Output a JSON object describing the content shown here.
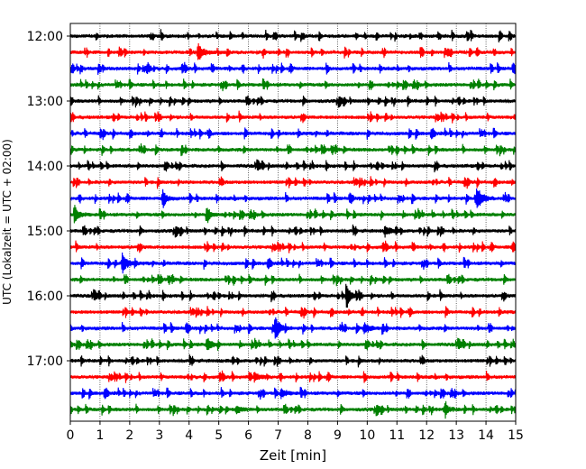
{
  "chart_data": {
    "type": "line",
    "title": "",
    "xlabel": "Zeit  [min]",
    "ylabel": "UTC (Lokalzeit = UTC + 02:00)",
    "xlim": [
      0,
      15
    ],
    "x_ticks": [
      "0",
      "1",
      "2",
      "3",
      "4",
      "5",
      "6",
      "7",
      "8",
      "9",
      "10",
      "11",
      "12",
      "13",
      "14",
      "15"
    ],
    "y_ticks": [
      "12:00",
      "13:00",
      "14:00",
      "15:00",
      "16:00",
      "17:00"
    ],
    "grid_x": true,
    "trace_colors": [
      "#000000",
      "#ff0000",
      "#0000ff",
      "#008000"
    ],
    "trace_start_times": [
      "12:00",
      "12:15",
      "12:30",
      "12:45",
      "13:00",
      "13:15",
      "13:30",
      "13:45",
      "14:00",
      "14:15",
      "14:30",
      "14:45",
      "15:00",
      "15:15",
      "15:30",
      "15:45",
      "16:00",
      "16:15",
      "16:30",
      "16:45",
      "17:00",
      "17:15",
      "17:30",
      "17:45"
    ],
    "events": [
      {
        "trace": 1,
        "minute": 4.3,
        "amplitude": 2.2
      },
      {
        "trace": 10,
        "minute": 13.7,
        "amplitude": 3.0
      },
      {
        "trace": 10,
        "minute": 3.1,
        "amplitude": 1.2
      },
      {
        "trace": 11,
        "minute": 0.15,
        "amplitude": 1.4
      },
      {
        "trace": 11,
        "minute": 4.6,
        "amplitude": 1.0
      },
      {
        "trace": 12,
        "minute": 10.6,
        "amplitude": 1.2
      },
      {
        "trace": 13,
        "minute": 14.9,
        "amplitude": 1.2
      },
      {
        "trace": 14,
        "minute": 1.75,
        "amplitude": 2.6
      },
      {
        "trace": 16,
        "minute": 9.3,
        "amplitude": 2.4
      },
      {
        "trace": 18,
        "minute": 6.9,
        "amplitude": 2.8
      },
      {
        "trace": 18,
        "minute": 9.9,
        "amplitude": 1.4
      },
      {
        "trace": 19,
        "minute": 4.6,
        "amplitude": 1.6
      },
      {
        "trace": 21,
        "minute": 6.2,
        "amplitude": 1.0
      },
      {
        "trace": 22,
        "minute": 7.1,
        "amplitude": 1.1
      },
      {
        "trace": 23,
        "minute": 12.6,
        "amplitude": 1.1
      },
      {
        "trace": 23,
        "minute": 5.6,
        "amplitude": 0.9
      }
    ]
  }
}
